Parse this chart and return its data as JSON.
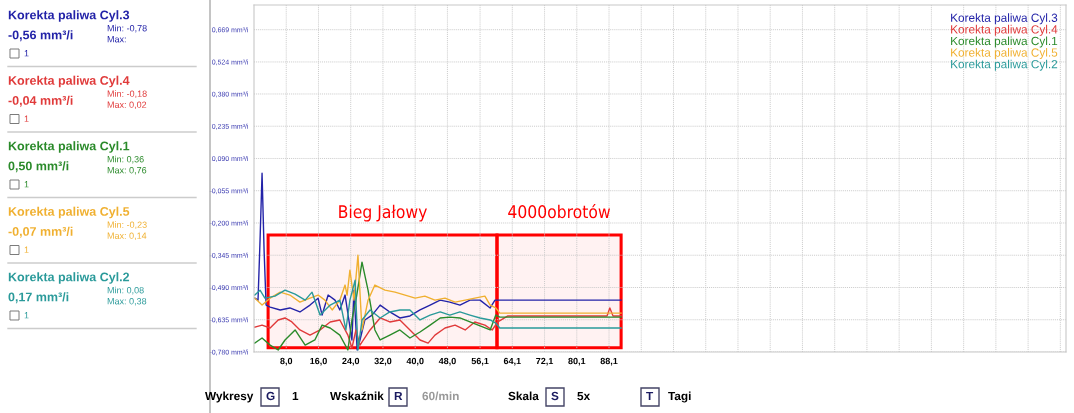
{
  "chart_data": {
    "type": "line",
    "xlim": [
      0,
      201.5
    ],
    "ylim": [
      -0.78,
      0.78
    ],
    "xticks": [
      {
        "value": 8.0,
        "label": "8,0"
      },
      {
        "value": 16.0,
        "label": "16,0"
      },
      {
        "value": 24.0,
        "label": "24,0"
      },
      {
        "value": 32.0,
        "label": "32,0"
      },
      {
        "value": 40.0,
        "label": "40,0"
      },
      {
        "value": 48.0,
        "label": "48,0"
      },
      {
        "value": 56.1,
        "label": "56,1"
      },
      {
        "value": 64.1,
        "label": "64,1"
      },
      {
        "value": 72.1,
        "label": "72,1"
      },
      {
        "value": 80.1,
        "label": "80,1"
      },
      {
        "value": 88.1,
        "label": "88,1"
      },
      {
        "value": 96.1,
        "label": null
      },
      {
        "value": 104.1,
        "label": null
      },
      {
        "value": 112.1,
        "label": null
      },
      {
        "value": 120.1,
        "label": null
      },
      {
        "value": 128.1,
        "label": null
      },
      {
        "value": 136.1,
        "label": null
      },
      {
        "value": 144.1,
        "label": null
      },
      {
        "value": 152.1,
        "label": null
      },
      {
        "value": 160.1,
        "label": null
      },
      {
        "value": 168.1,
        "label": null
      },
      {
        "value": 176.1,
        "label": null
      },
      {
        "value": 184.1,
        "label": null
      },
      {
        "value": 192.1,
        "label": null
      },
      {
        "value": 200.1,
        "label": null
      }
    ],
    "yticks": [
      {
        "value": 0.669,
        "label": "0,669 mm³/i"
      },
      {
        "value": 0.524,
        "label": "0,524 mm³/i"
      },
      {
        "value": 0.38,
        "label": "0,380 mm³/i"
      },
      {
        "value": 0.235,
        "label": "0,235 mm³/i"
      },
      {
        "value": 0.09,
        "label": "0,090 mm³/i"
      },
      {
        "value": -0.055,
        "label": "-0,055 mm³/i"
      },
      {
        "value": -0.2,
        "label": "-0,200 mm³/i"
      },
      {
        "value": -0.345,
        "label": "-0,345 mm³/i"
      },
      {
        "value": -0.49,
        "label": "-0,490 mm³/i"
      },
      {
        "value": -0.635,
        "label": "-0,635 mm³/i"
      },
      {
        "value": -0.78,
        "label": "-0,780 mm³/i"
      }
    ],
    "grid": true,
    "legend": "top right",
    "series": [
      {
        "name": "Korekta paliwa Cyl.3",
        "color": "#2323a8",
        "x": [
          0.2,
          1.0,
          1.5,
          2.0,
          2.5,
          3.0,
          4.0,
          6.5,
          8.9,
          11.4,
          13.9,
          15.9,
          16.9,
          18.4,
          20.1,
          21.3,
          22.6,
          24.3,
          24.8,
          25.6,
          26.3,
          27.5,
          29.3,
          31.3,
          33.7,
          36.2,
          38.7,
          41.2,
          43.7,
          46.2,
          48.6,
          51.1,
          53.6,
          56.1,
          58.6,
          59.8,
          60.5,
          91.1
        ],
        "values": [
          -0.538,
          -0.547,
          -0.277,
          0.024,
          -0.322,
          -0.569,
          -0.578,
          -0.591,
          -0.582,
          -0.6,
          -0.569,
          -0.538,
          -0.614,
          -0.524,
          -0.547,
          -0.591,
          -0.524,
          -0.726,
          -0.502,
          -0.771,
          -0.726,
          -0.636,
          -0.614,
          -0.569,
          -0.6,
          -0.627,
          -0.618,
          -0.591,
          -0.569,
          -0.547,
          -0.556,
          -0.569,
          -0.547,
          -0.547,
          -0.582,
          -0.547,
          -0.547,
          -0.547
        ]
      },
      {
        "name": "Korekta paliwa Cyl.4",
        "color": "#e03a3a",
        "x": [
          0.2,
          2.0,
          4.0,
          6.0,
          7.7,
          9.4,
          11.4,
          13.9,
          16.4,
          18.9,
          21.3,
          23.3,
          24.3,
          25.3,
          26.3,
          28.8,
          31.3,
          33.7,
          36.2,
          38.7,
          41.2,
          43.2,
          44.9,
          47.4,
          49.9,
          52.4,
          54.8,
          57.3,
          59.1,
          60.5,
          63.0,
          87.6,
          88.3,
          89.1,
          91.1
        ],
        "values": [
          -0.668,
          -0.659,
          -0.672,
          -0.636,
          -0.627,
          -0.645,
          -0.681,
          -0.704,
          -0.681,
          -0.645,
          -0.636,
          -0.704,
          -0.762,
          -0.681,
          -0.749,
          -0.681,
          -0.627,
          -0.645,
          -0.636,
          -0.681,
          -0.726,
          -0.74,
          -0.704,
          -0.672,
          -0.659,
          -0.681,
          -0.645,
          -0.659,
          -0.681,
          -0.645,
          -0.618,
          -0.618,
          -0.582,
          -0.618,
          -0.618
        ]
      },
      {
        "name": "Korekta paliwa Cyl.1",
        "color": "#2a8a2a",
        "x": [
          0.2,
          2.0,
          4.0,
          6.0,
          7.7,
          10.2,
          12.7,
          15.1,
          16.9,
          18.9,
          21.3,
          23.3,
          24.3,
          25.3,
          26.8,
          28.3,
          30.0,
          31.3,
          33.7,
          36.2,
          38.7,
          41.2,
          43.7,
          46.2,
          48.6,
          51.1,
          53.6,
          56.1,
          58.6,
          60.0,
          61.0,
          91.1
        ],
        "values": [
          -0.74,
          -0.717,
          -0.749,
          -0.771,
          -0.726,
          -0.681,
          -0.749,
          -0.726,
          -0.659,
          -0.672,
          -0.704,
          -0.771,
          -0.636,
          -0.547,
          -0.376,
          -0.502,
          -0.681,
          -0.726,
          -0.704,
          -0.681,
          -0.717,
          -0.69,
          -0.659,
          -0.627,
          -0.623,
          -0.627,
          -0.645,
          -0.663,
          -0.681,
          -0.614,
          -0.623,
          -0.623
        ]
      },
      {
        "name": "Korekta paliwa Cyl.5",
        "color": "#f0b030",
        "x": [
          0.2,
          2.0,
          4.0,
          6.5,
          8.9,
          11.4,
          13.9,
          15.9,
          17.6,
          19.4,
          21.3,
          22.6,
          23.1,
          23.8,
          24.8,
          25.8,
          26.8,
          28.3,
          30.0,
          32.5,
          35.0,
          37.5,
          40.0,
          42.4,
          44.9,
          47.4,
          49.9,
          52.4,
          54.8,
          57.3,
          58.6,
          60.0,
          61.0,
          91.1
        ],
        "values": [
          -0.538,
          -0.569,
          -0.538,
          -0.511,
          -0.524,
          -0.556,
          -0.538,
          -0.524,
          -0.547,
          -0.591,
          -0.547,
          -0.479,
          -0.524,
          -0.412,
          -0.547,
          -0.345,
          -0.681,
          -0.547,
          -0.479,
          -0.502,
          -0.511,
          -0.524,
          -0.538,
          -0.529,
          -0.547,
          -0.538,
          -0.556,
          -0.547,
          -0.538,
          -0.529,
          -0.569,
          -0.582,
          -0.605,
          -0.605
        ]
      },
      {
        "name": "Korekta paliwa Cyl.2",
        "color": "#2a9a9a",
        "x": [
          0.2,
          1.5,
          2.7,
          5.2,
          7.7,
          10.2,
          12.7,
          14.4,
          16.4,
          18.9,
          21.3,
          22.8,
          23.8,
          25.1,
          25.8,
          26.8,
          28.8,
          31.3,
          33.7,
          36.2,
          38.7,
          41.2,
          43.7,
          46.2,
          48.6,
          51.1,
          53.6,
          56.1,
          58.6,
          60.0,
          61.0,
          91.1
        ],
        "values": [
          -0.524,
          -0.502,
          -0.538,
          -0.529,
          -0.502,
          -0.52,
          -0.547,
          -0.511,
          -0.614,
          -0.569,
          -0.547,
          -0.681,
          -0.547,
          -0.457,
          -0.771,
          -0.636,
          -0.591,
          -0.627,
          -0.6,
          -0.591,
          -0.591,
          -0.636,
          -0.614,
          -0.6,
          -0.614,
          -0.6,
          -0.614,
          -0.627,
          -0.636,
          -0.65,
          -0.672,
          -0.672
        ]
      }
    ],
    "bands": [
      {
        "axis": "x",
        "from": 3.5,
        "to": 60.3,
        "label": "Bieg Jałowy",
        "color": "#ff0000"
      },
      {
        "axis": "x",
        "from": 60.3,
        "to": 91.1,
        "label": "4000obrotów",
        "color": "#ff0000"
      }
    ],
    "annotations": [
      "Korekta paliwa Cyl.3",
      "-0,56 mm³/i",
      "Min: -0,78",
      "Max:",
      "1",
      "Korekta paliwa Cyl.4",
      "-0,04 mm³/i",
      "Min: -0,18",
      "Max: 0,02",
      "1",
      "Korekta paliwa Cyl.1",
      "0,50 mm³/i",
      "Min: 0,36",
      "Max: 0,76",
      "1",
      "Korekta paliwa Cyl.5",
      "-0,07 mm³/i",
      "Min: -0,23",
      "Max: 0,14",
      "1",
      "Korekta paliwa Cyl.2",
      "0,17 mm³/i",
      "Min: 0,08",
      "Max: 0,38",
      "1",
      "Wykresy",
      "G",
      "1",
      "Wskaźnik",
      "R",
      "60/min",
      "Skala",
      "S",
      "5x",
      "T",
      "Tagi"
    ]
  }
}
